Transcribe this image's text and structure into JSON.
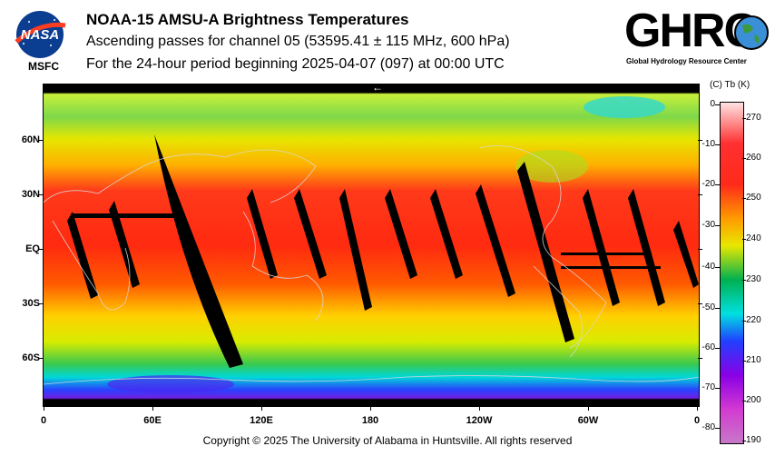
{
  "header": {
    "title": "NOAA-15 AMSU-A Brightness Temperatures",
    "subtitle": "Ascending passes for channel 05 (53595.41 ± 115 MHz, 600 hPa)",
    "period": "For the 24-hour period beginning 2025-04-07 (097) at 00:00 UTC"
  },
  "logos": {
    "nasa_text": "NASA",
    "msfc_text": "MSFC",
    "ghrc_text": "GHRC",
    "ghrc_subtitle": "Global Hydrology Resource Center"
  },
  "map": {
    "arrow": "←",
    "lat_labels": [
      "60N",
      "30N",
      "EQ",
      "30S",
      "60S"
    ],
    "lon_labels": [
      "0",
      "60E",
      "120E",
      "180",
      "120W",
      "60W",
      "0"
    ]
  },
  "colorbar": {
    "header": "(C)  Tb  (K)",
    "celsius_ticks": [
      "0",
      "-10",
      "-20",
      "-30",
      "-40",
      "-50",
      "-60",
      "-70",
      "-80"
    ],
    "kelvin_ticks": [
      "270",
      "260",
      "250",
      "240",
      "230",
      "220",
      "210",
      "200",
      "190"
    ],
    "colors": {
      "warm": "#ff2a1a",
      "mid": "#e8e800",
      "cool": "#00b050",
      "cold": "#2040ff"
    }
  },
  "footer": {
    "copyright": "Copyright © 2025 The University of Alabama in Huntsville.  All rights reserved"
  }
}
